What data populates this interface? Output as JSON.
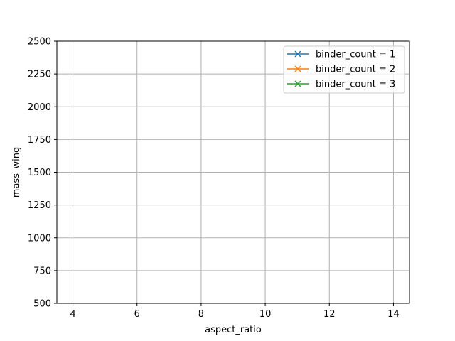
{
  "chart_data": {
    "type": "line",
    "title": "",
    "xlabel": "aspect_ratio",
    "ylabel": "mass_wing",
    "xlim": [
      3.5,
      14.5
    ],
    "ylim": [
      500,
      2500
    ],
    "xticks": [
      4,
      6,
      8,
      10,
      12,
      14
    ],
    "yticks": [
      500,
      750,
      1000,
      1250,
      1500,
      1750,
      2000,
      2250,
      2500
    ],
    "grid": true,
    "legend_position": "top-right",
    "marker": "x",
    "series": [
      {
        "name": "binder_count = 1",
        "color": "#1f77b4",
        "x": [],
        "y": []
      },
      {
        "name": "binder_count = 2",
        "color": "#ff7f0e",
        "x": [],
        "y": []
      },
      {
        "name": "binder_count = 3",
        "color": "#2ca02c",
        "x": [],
        "y": []
      }
    ]
  }
}
